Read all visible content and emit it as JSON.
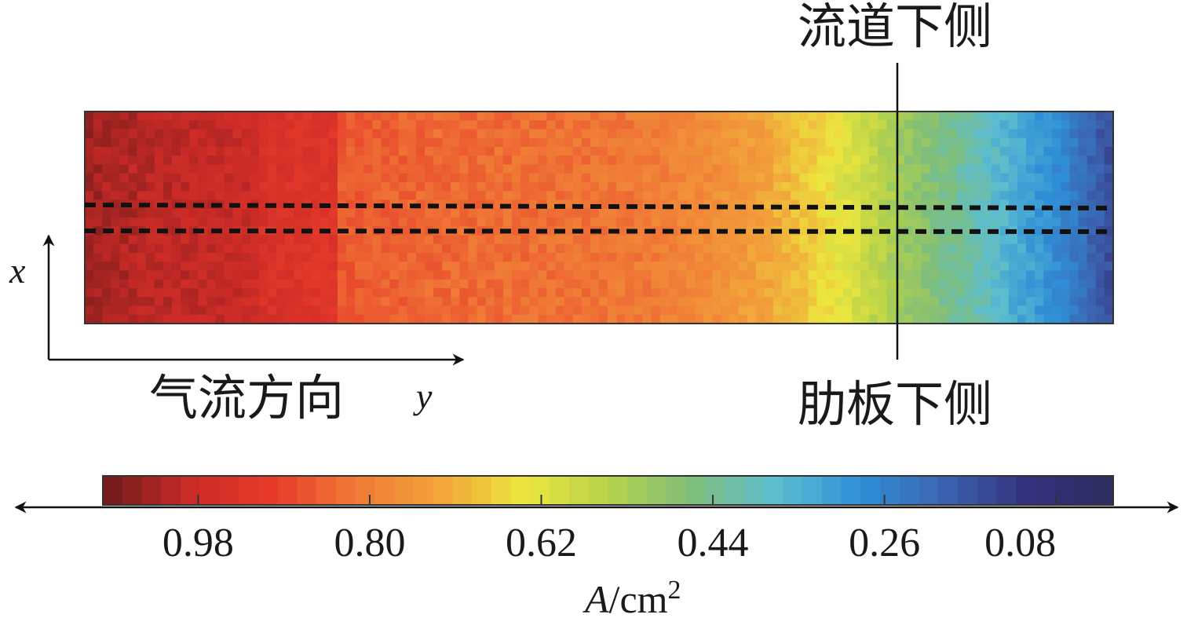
{
  "chart_data": {
    "type": "heatmap",
    "title": "",
    "xlabel": "A/cm²",
    "annotations": {
      "top_right": "流道下侧",
      "bottom_right": "肋板下侧",
      "flow_direction": "气流方向",
      "x_axis_symbol": "x",
      "y_axis_symbol": "y"
    },
    "colorbar": {
      "label_italic": "A",
      "label_unit": "/cm",
      "label_power": "2",
      "ticks": [
        "0.98",
        "0.80",
        "0.62",
        "0.44",
        "0.26",
        "0.08"
      ],
      "tick_values": [
        0.98,
        0.8,
        0.62,
        0.44,
        0.26,
        0.08
      ],
      "range": [
        1.08,
        0.02
      ]
    },
    "profile_along_y": {
      "y_fraction": [
        0.0,
        0.08,
        0.165,
        0.17,
        0.245,
        0.25,
        0.35,
        0.45,
        0.55,
        0.6,
        0.65,
        0.7,
        0.75,
        0.8,
        0.85,
        0.9,
        0.95,
        1.0
      ],
      "current_density": [
        1.03,
        1.0,
        0.98,
        0.95,
        0.93,
        0.86,
        0.84,
        0.83,
        0.81,
        0.78,
        0.74,
        0.68,
        0.6,
        0.5,
        0.43,
        0.35,
        0.27,
        0.15
      ]
    },
    "colormap": [
      "#6b1a1a",
      "#c82a26",
      "#e63a2a",
      "#f07a36",
      "#f2a33a",
      "#ece63e",
      "#b6d24a",
      "#7fbe7a",
      "#5cbdd0",
      "#2f8fd6",
      "#3b63b0",
      "#34307c",
      "#2e2c5e"
    ],
    "colors": {
      "accent_line": "#111111"
    }
  }
}
